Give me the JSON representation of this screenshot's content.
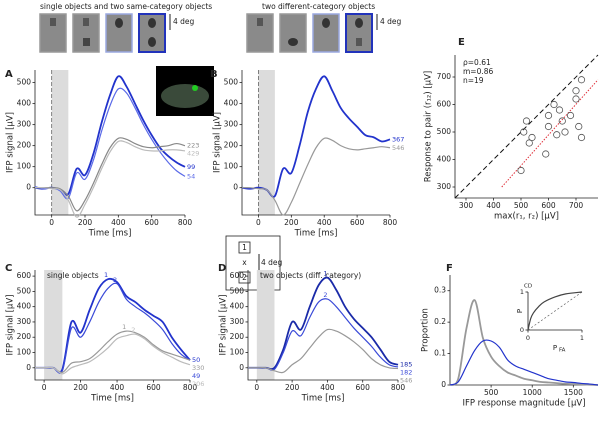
{
  "header": {
    "left": "single objects and two same-category objects",
    "right": "two different-category objects",
    "scale": "4 deg"
  },
  "stimulus_key": {
    "top": "1",
    "center": "x",
    "bottom": "2",
    "scale": "4 deg"
  },
  "chart_data": [
    {
      "type": "line",
      "panel": "A",
      "xlabel": "Time [ms]",
      "ylabel": "IFP signal [µV]",
      "xlim": [
        -100,
        800
      ],
      "ylim": [
        -130,
        560
      ],
      "xticks": [
        0,
        200,
        400,
        600,
        800
      ],
      "yticks": [
        0,
        100,
        200,
        300,
        400,
        500
      ],
      "shade": [
        0,
        100
      ],
      "x": [
        -100,
        -50,
        0,
        50,
        100,
        150,
        200,
        250,
        300,
        350,
        400,
        450,
        500,
        550,
        600,
        650,
        700,
        750,
        800
      ],
      "series": [
        {
          "name": "99",
          "color": "#2233cc",
          "values": [
            0,
            -5,
            0,
            -10,
            -30,
            90,
            60,
            160,
            310,
            440,
            530,
            480,
            400,
            320,
            250,
            190,
            150,
            120,
            99
          ]
        },
        {
          "name": "54",
          "color": "#5a6ae8",
          "values": [
            5,
            -5,
            0,
            -15,
            -50,
            70,
            40,
            130,
            270,
            390,
            470,
            450,
            380,
            300,
            230,
            170,
            120,
            80,
            54
          ]
        },
        {
          "name": "223",
          "color": "#888888",
          "values": [
            0,
            0,
            0,
            -5,
            -40,
            -110,
            -60,
            20,
            110,
            190,
            235,
            230,
            210,
            195,
            190,
            195,
            200,
            210,
            200
          ]
        },
        {
          "name": "429",
          "color": "#bbbbbb",
          "values": [
            0,
            0,
            -5,
            -10,
            -60,
            -140,
            -80,
            0,
            90,
            170,
            220,
            215,
            195,
            180,
            175,
            175,
            180,
            180,
            175
          ]
        }
      ]
    },
    {
      "type": "line",
      "panel": "B",
      "xlabel": "Time [ms]",
      "ylabel": "IFP signal [µV]",
      "xlim": [
        -100,
        800
      ],
      "ylim": [
        -130,
        560
      ],
      "xticks": [
        0,
        200,
        400,
        600,
        800
      ],
      "yticks": [
        0,
        100,
        200,
        300,
        400,
        500
      ],
      "shade": [
        0,
        100
      ],
      "x": [
        -100,
        -50,
        0,
        50,
        100,
        150,
        200,
        250,
        300,
        350,
        400,
        450,
        500,
        550,
        600,
        650,
        700,
        750,
        800
      ],
      "series": [
        {
          "name": "367",
          "color": "#2233cc",
          "values": [
            0,
            -5,
            0,
            -10,
            -40,
            90,
            70,
            200,
            360,
            470,
            530,
            460,
            380,
            330,
            290,
            250,
            240,
            220,
            230
          ]
        },
        {
          "name": "546",
          "color": "#999999",
          "values": [
            0,
            0,
            -5,
            -10,
            -60,
            -130,
            -70,
            20,
            110,
            190,
            235,
            225,
            200,
            185,
            180,
            185,
            190,
            195,
            190
          ]
        }
      ]
    },
    {
      "type": "line",
      "panel": "C",
      "title": "single objects",
      "xlabel": "Time [ms]",
      "ylabel": "IFP signal [µV]",
      "xlim": [
        -50,
        800
      ],
      "ylim": [
        -80,
        640
      ],
      "xticks": [
        0,
        200,
        400,
        600,
        800
      ],
      "yticks": [
        0,
        100,
        200,
        300,
        400,
        500,
        600
      ],
      "shade": [
        0,
        100
      ],
      "x": [
        -50,
        0,
        50,
        100,
        150,
        200,
        250,
        300,
        350,
        400,
        450,
        500,
        550,
        600,
        650,
        700,
        750,
        800
      ],
      "series": [
        {
          "name": "50",
          "tag": "1",
          "color": "#2233cc",
          "values": [
            0,
            0,
            0,
            -10,
            300,
            230,
            380,
            520,
            580,
            560,
            470,
            430,
            380,
            340,
            300,
            200,
            120,
            50
          ]
        },
        {
          "name": "49",
          "tag": "2",
          "color": "#3a4ad8",
          "values": [
            0,
            0,
            0,
            -20,
            260,
            200,
            300,
            430,
            520,
            550,
            450,
            400,
            360,
            310,
            250,
            160,
            90,
            49
          ]
        },
        {
          "name": "330",
          "tag": "1",
          "color": "#999999",
          "values": [
            0,
            0,
            0,
            -30,
            30,
            40,
            60,
            110,
            170,
            220,
            240,
            230,
            200,
            150,
            110,
            90,
            70,
            50
          ]
        },
        {
          "name": "206",
          "tag": "2",
          "color": "#bbbbbb",
          "values": [
            0,
            0,
            0,
            -40,
            0,
            20,
            40,
            80,
            130,
            190,
            210,
            220,
            190,
            140,
            100,
            70,
            40,
            20
          ]
        }
      ]
    },
    {
      "type": "line",
      "panel": "D",
      "title": "two objects (diff. category)",
      "xlabel": "Time [ms]",
      "ylabel": "IFP signal [µV]",
      "xlim": [
        -50,
        800
      ],
      "ylim": [
        -80,
        640
      ],
      "xticks": [
        0,
        200,
        400,
        600,
        800
      ],
      "yticks": [
        0,
        100,
        200,
        300,
        400,
        500,
        600
      ],
      "shade": [
        0,
        100
      ],
      "x": [
        -50,
        0,
        50,
        100,
        150,
        200,
        250,
        300,
        350,
        400,
        450,
        500,
        550,
        600,
        650,
        700,
        750,
        800
      ],
      "series": [
        {
          "name": "185",
          "tag": "1",
          "color": "#1a2aa8",
          "values": [
            0,
            0,
            0,
            0,
            120,
            300,
            250,
            400,
            540,
            590,
            510,
            400,
            320,
            260,
            200,
            120,
            40,
            20
          ]
        },
        {
          "name": "182",
          "tag": "2",
          "color": "#3a4ad8",
          "values": [
            0,
            0,
            0,
            -10,
            100,
            240,
            210,
            330,
            430,
            450,
            400,
            330,
            260,
            200,
            140,
            70,
            20,
            5
          ]
        },
        {
          "name": "546",
          "color": "#999999",
          "values": [
            0,
            0,
            0,
            -20,
            -30,
            20,
            60,
            130,
            200,
            250,
            240,
            210,
            170,
            120,
            60,
            20,
            0,
            -5
          ]
        }
      ]
    },
    {
      "type": "scatter",
      "panel": "E",
      "xlabel": "max(r₁, r₂) [µV]",
      "ylabel": "Response to pair (r₁₂) [µV]",
      "xlim": [
        260,
        780
      ],
      "ylim": [
        260,
        780
      ],
      "xticks": [
        300,
        400,
        500,
        600,
        700
      ],
      "yticks": [
        300,
        400,
        500,
        600,
        700
      ],
      "annotations": [
        "ρ=0.61",
        "m=0.86",
        "n=19"
      ],
      "x": [
        520,
        510,
        540,
        530,
        500,
        590,
        600,
        620,
        640,
        650,
        660,
        680,
        700,
        700,
        720,
        710,
        720,
        630,
        600
      ],
      "values": [
        540,
        500,
        480,
        460,
        360,
        420,
        560,
        600,
        580,
        540,
        500,
        560,
        620,
        650,
        690,
        520,
        480,
        490,
        520
      ],
      "fit": {
        "x": [
          430,
          780
        ],
        "values": [
          300,
          690
        ]
      }
    },
    {
      "type": "line",
      "panel": "F",
      "xlabel": "IFP response magnitude [µV]",
      "ylabel": "Proportion",
      "xlim": [
        0,
        1800
      ],
      "ylim": [
        0,
        0.35
      ],
      "xticks": [
        500,
        1000,
        1500
      ],
      "yticks": [
        0,
        0.1,
        0.2,
        0.3
      ],
      "x": [
        0,
        100,
        200,
        300,
        400,
        500,
        600,
        700,
        800,
        900,
        1000,
        1100,
        1200,
        1300,
        1400,
        1500,
        1600,
        1700,
        1800
      ],
      "series": [
        {
          "color": "#999999",
          "values": [
            0,
            0.02,
            0.18,
            0.27,
            0.15,
            0.09,
            0.06,
            0.04,
            0.03,
            0.02,
            0.015,
            0.01,
            0.008,
            0.006,
            0.004,
            0.003,
            0.002,
            0.001,
            0
          ]
        },
        {
          "color": "#2233cc",
          "values": [
            0,
            0.01,
            0.06,
            0.11,
            0.14,
            0.14,
            0.12,
            0.08,
            0.06,
            0.05,
            0.04,
            0.03,
            0.02,
            0.015,
            0.01,
            0.008,
            0.005,
            0.003,
            0
          ]
        }
      ]
    },
    {
      "type": "line",
      "xlabel": "P",
      "xlabel_sub": "FA",
      "ylabel": "P",
      "ylabel_sub": "CD",
      "xlim": [
        0,
        1
      ],
      "ylim": [
        0,
        1
      ],
      "xticks": [
        0,
        1
      ],
      "yticks": [
        0,
        1
      ],
      "x": [
        0,
        0.05,
        0.1,
        0.2,
        0.3,
        0.5,
        0.7,
        1
      ],
      "series": [
        {
          "color": "#444444",
          "values": [
            0,
            0.3,
            0.45,
            0.62,
            0.74,
            0.87,
            0.95,
            1
          ]
        }
      ]
    }
  ]
}
